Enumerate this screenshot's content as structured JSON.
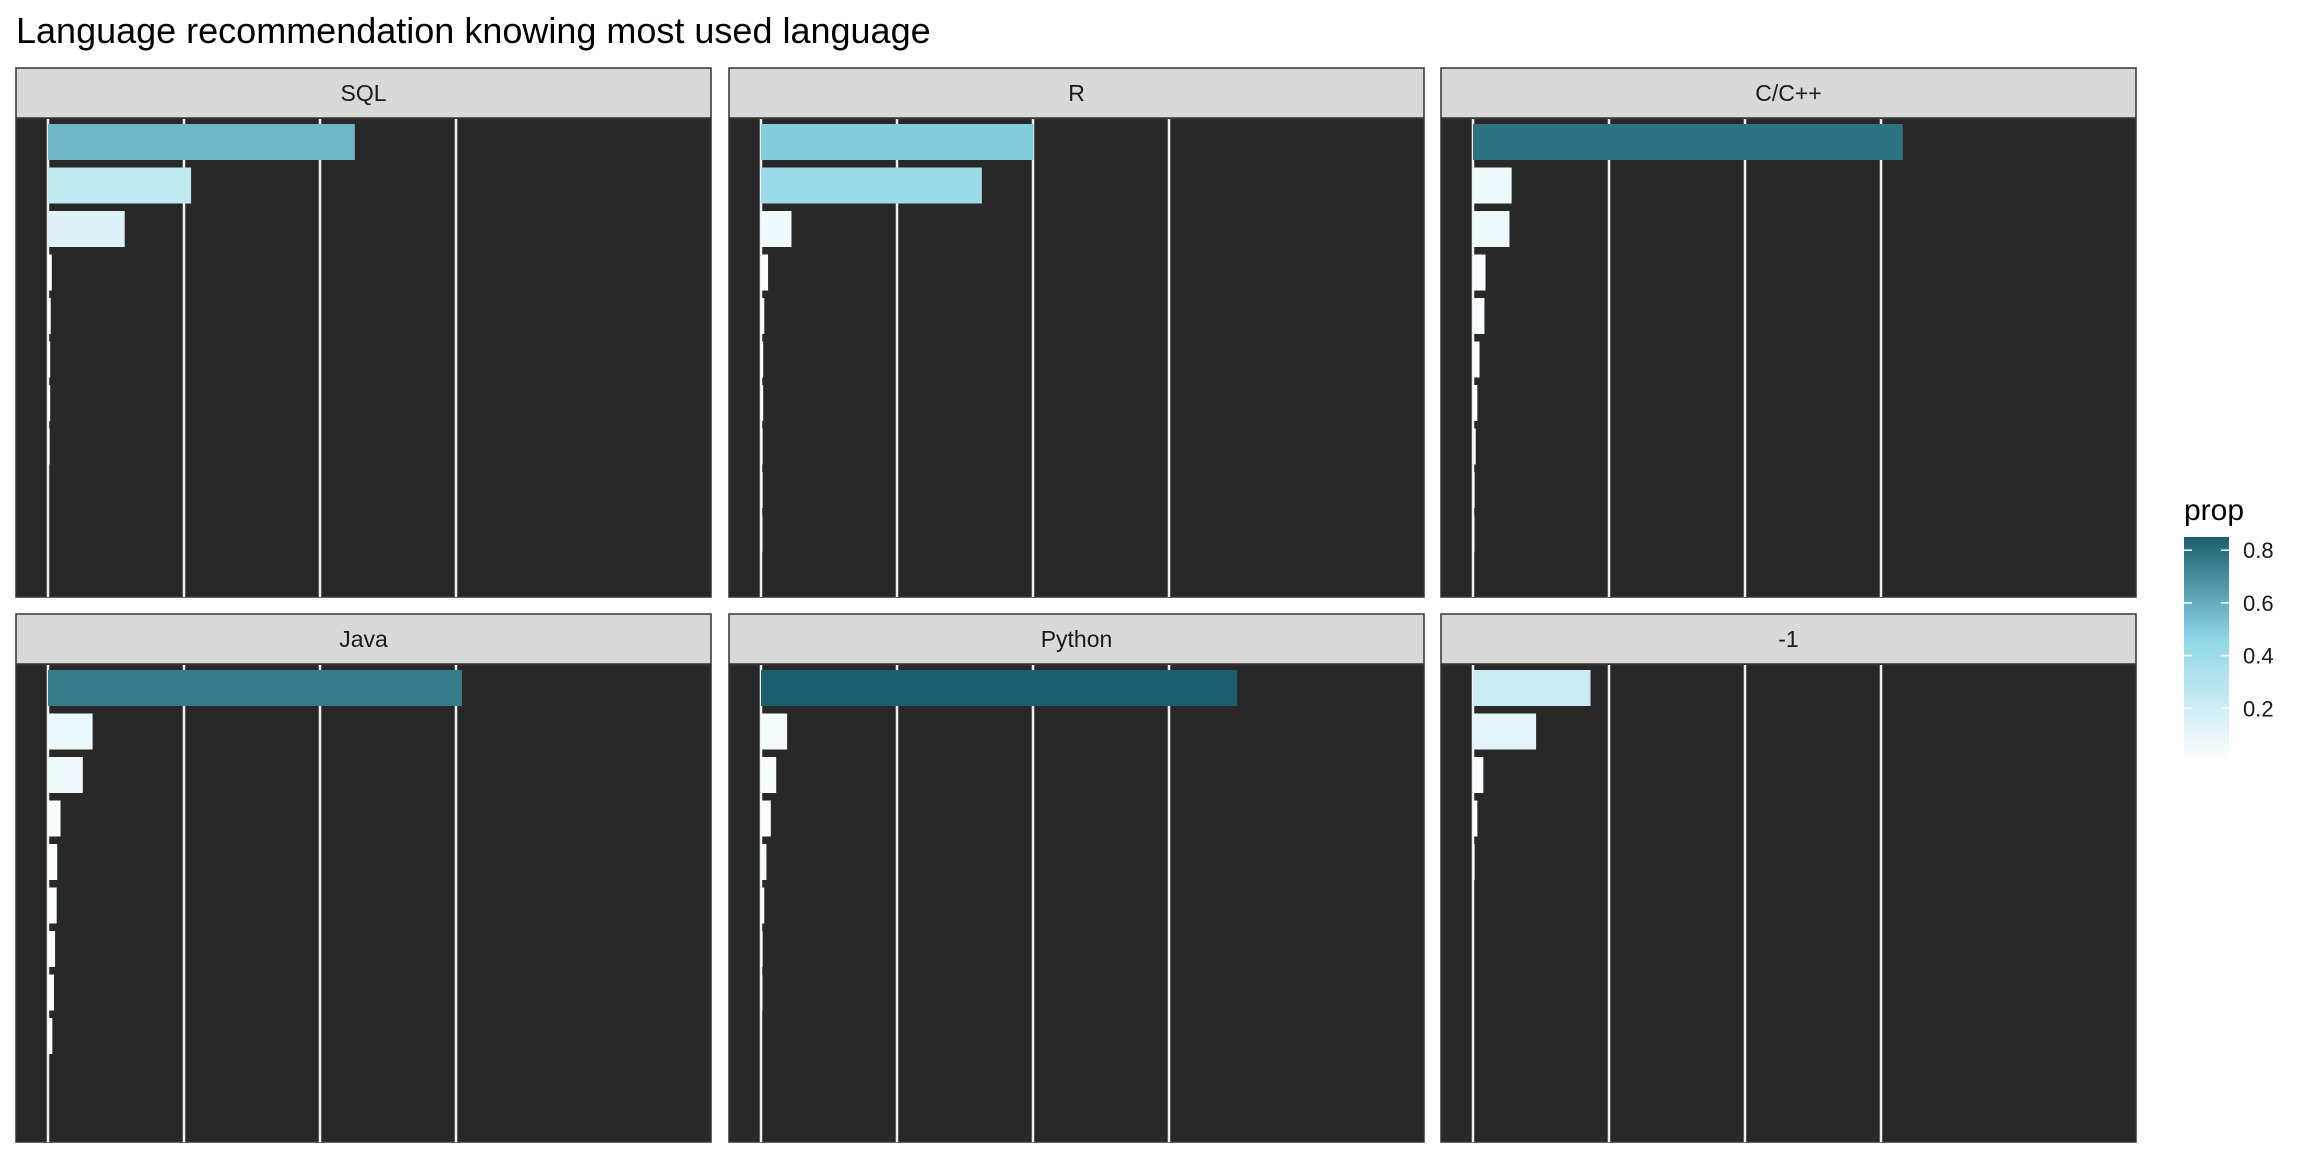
{
  "chart_data": {
    "type": "bar",
    "orientation": "horizontal",
    "title": "Language recommendation knowing most used language",
    "xlabel": "",
    "ylabel": "",
    "xlim": [
      0,
      1.0
    ],
    "grid": true,
    "legend_position": "right",
    "legend": {
      "title": "prop",
      "ticks": [
        "0.2",
        "0.4",
        "0.6",
        "0.8"
      ],
      "tick_values": [
        0.2,
        0.4,
        0.6,
        0.8
      ],
      "range": [
        0.0,
        0.85
      ],
      "color_low": "#ffffff",
      "color_mid": "#8dd6e6",
      "color_high": "#1b5f6e"
    },
    "panels": [
      {
        "name": "SQL",
        "values": [
          0.564,
          0.263,
          0.141,
          0.007,
          0.005,
          0.004,
          0.004,
          0.003
        ]
      },
      {
        "name": "R",
        "values": [
          0.501,
          0.406,
          0.056,
          0.013,
          0.006,
          0.004,
          0.004,
          0.003,
          0.003,
          0.002
        ]
      },
      {
        "name": "C/C++",
        "values": [
          0.79,
          0.071,
          0.067,
          0.023,
          0.021,
          0.012,
          0.008,
          0.005,
          0.003,
          0.002
        ]
      },
      {
        "name": "Java",
        "values": [
          0.761,
          0.082,
          0.064,
          0.023,
          0.017,
          0.016,
          0.013,
          0.011,
          0.008
        ]
      },
      {
        "name": "Python",
        "values": [
          0.875,
          0.048,
          0.028,
          0.018,
          0.01,
          0.006,
          0.003,
          0.002
        ]
      },
      {
        "name": "-1",
        "values": [
          0.216,
          0.116,
          0.019,
          0.008,
          0.003
        ]
      }
    ]
  },
  "colors": {
    "panel_bg": "#282828",
    "strip_bg": "#d9d9d9",
    "grid": "#f0f0f0",
    "separator": "#282828"
  }
}
